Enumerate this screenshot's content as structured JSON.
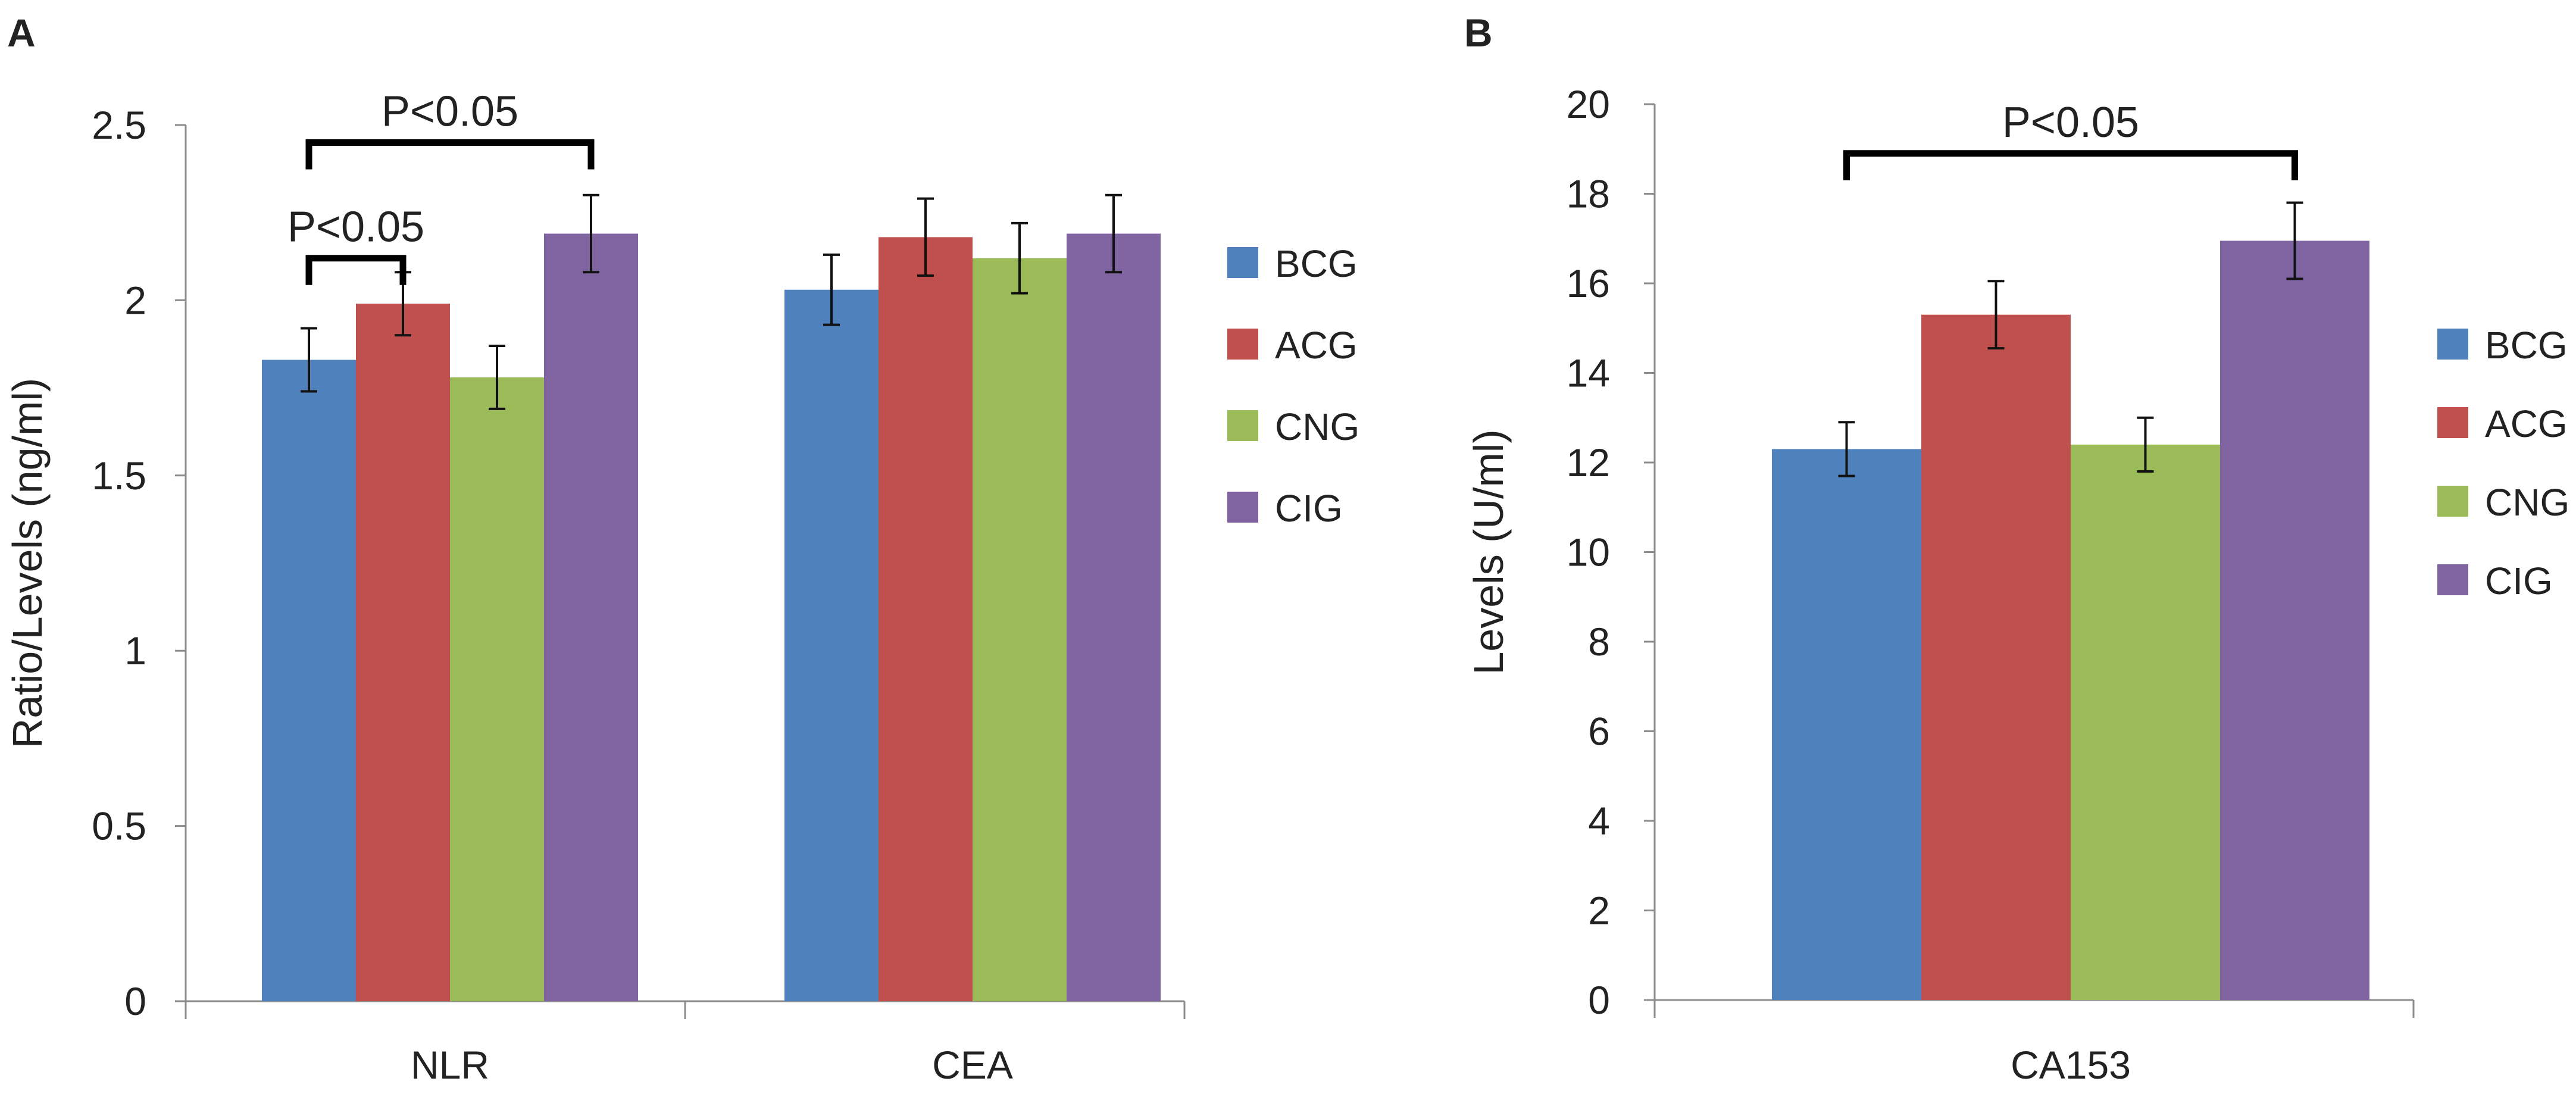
{
  "chart_data": [
    {
      "panel": "A",
      "type": "bar",
      "categories": [
        "NLR",
        "CEA"
      ],
      "series": [
        {
          "name": "BCG",
          "color": "#4f81bd",
          "values": [
            1.83,
            2.03
          ],
          "errors": [
            0.09,
            0.1
          ]
        },
        {
          "name": "ACG",
          "color": "#c0504d",
          "values": [
            1.99,
            2.18
          ],
          "errors": [
            0.09,
            0.11
          ]
        },
        {
          "name": "CNG",
          "color": "#9bbb59",
          "values": [
            1.78,
            2.12
          ],
          "errors": [
            0.09,
            0.1
          ]
        },
        {
          "name": "CIG",
          "color": "#8064a2",
          "values": [
            2.19,
            2.19
          ],
          "errors": [
            0.11,
            0.11
          ]
        }
      ],
      "ylabel": "Ratio/Levels (ng/ml)",
      "xlabel": "",
      "ylim": [
        0,
        2.5
      ],
      "yticks": [
        "0",
        "0.5",
        "1",
        "1.5",
        "2",
        "2.5"
      ],
      "yticks_values": [
        0,
        0.5,
        1,
        1.5,
        2,
        2.5
      ],
      "legend_position": "right",
      "annotations": [
        {
          "text": "P<0.05",
          "category": 0,
          "from_series": 0,
          "to_series": 1,
          "level": 2.12
        },
        {
          "text": "P<0.05",
          "category": 0,
          "from_series": 0,
          "to_series": 3,
          "level": 2.45
        }
      ]
    },
    {
      "panel": "B",
      "type": "bar",
      "categories": [
        "CA153"
      ],
      "series": [
        {
          "name": "BCG",
          "color": "#4f81bd",
          "values": [
            12.3
          ],
          "errors": [
            0.6
          ]
        },
        {
          "name": "ACG",
          "color": "#c0504d",
          "values": [
            15.3
          ],
          "errors": [
            0.75
          ]
        },
        {
          "name": "CNG",
          "color": "#9bbb59",
          "values": [
            12.4
          ],
          "errors": [
            0.6
          ]
        },
        {
          "name": "CIG",
          "color": "#8064a2",
          "values": [
            16.95
          ],
          "errors": [
            0.85
          ]
        }
      ],
      "ylabel": "Levels (U/ml)",
      "xlabel": "",
      "ylim": [
        0,
        20
      ],
      "yticks": [
        "0",
        "2",
        "4",
        "6",
        "8",
        "10",
        "12",
        "14",
        "16",
        "18",
        "20"
      ],
      "yticks_values": [
        0,
        2,
        4,
        6,
        8,
        10,
        12,
        14,
        16,
        18,
        20
      ],
      "legend_position": "right",
      "annotations": [
        {
          "text": "P<0.05",
          "category": 0,
          "from_series": 0,
          "to_series": 3,
          "level": 18.9
        }
      ]
    }
  ]
}
